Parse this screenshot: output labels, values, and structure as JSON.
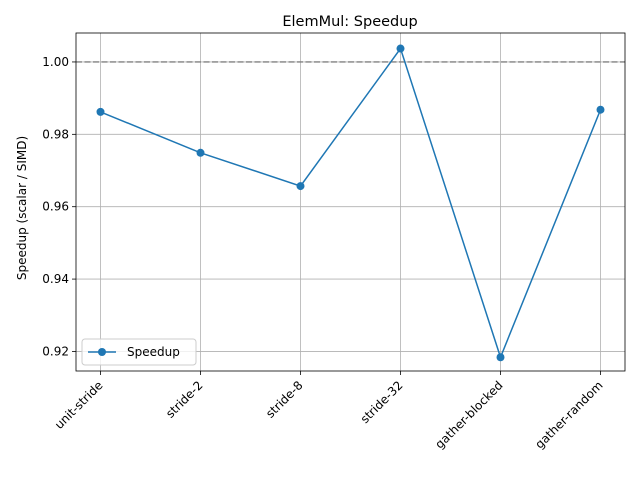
{
  "chart_data": {
    "type": "line",
    "title": "ElemMul: Speedup",
    "xlabel": "",
    "ylabel": "Speedup (scalar / SIMD)",
    "categories": [
      "unit-stride",
      "stride-2",
      "stride-8",
      "stride-32",
      "gather-blocked",
      "gather-random"
    ],
    "series": [
      {
        "name": "Speedup",
        "values": [
          0.9862,
          0.9749,
          0.9657,
          1.0037,
          0.9184,
          0.9868
        ],
        "color": "#1f77b4",
        "marker": "circle"
      }
    ],
    "yticks": [
      "0.92",
      "0.94",
      "0.96",
      "0.98",
      "1.00"
    ],
    "ylim": [
      0.9146,
      1.008
    ],
    "reference_line": {
      "y": 1.0,
      "style": "dashed",
      "color": "#808080"
    },
    "grid": true,
    "legend": "lower-left"
  }
}
